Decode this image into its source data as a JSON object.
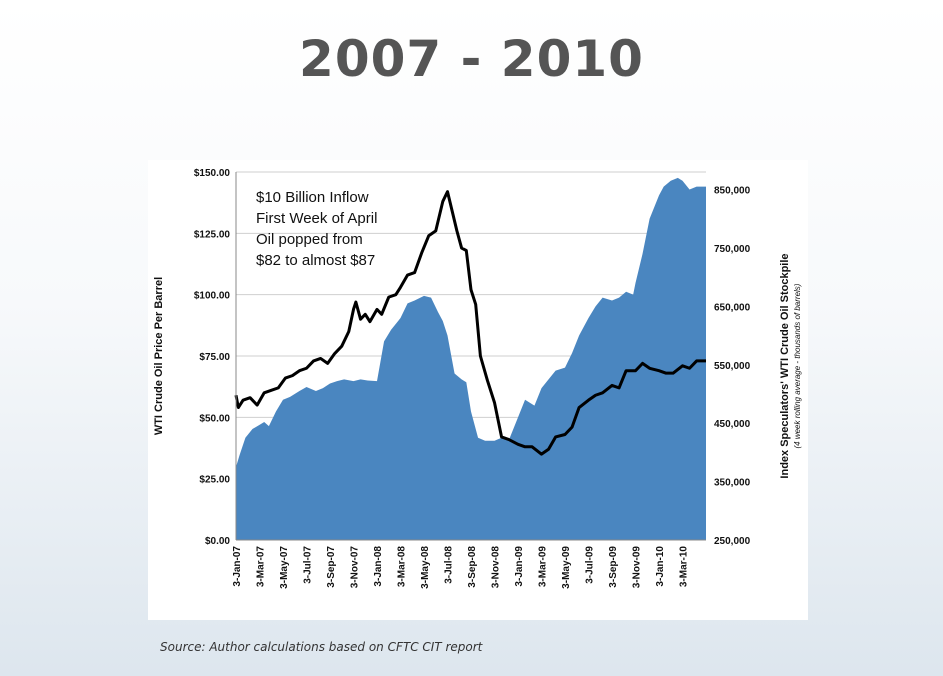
{
  "title": "2007 - 2010",
  "source": "Source: Author calculations based on CFTC CIT report",
  "colors": {
    "area": "#4a86c0",
    "line": "#000000",
    "grid": "#cfcfcf"
  },
  "chart_data": {
    "type": "area",
    "x_ticks": [
      "3-Jan-07",
      "3-Mar-07",
      "3-May-07",
      "3-Jul-07",
      "3-Sep-07",
      "3-Nov-07",
      "3-Jan-08",
      "3-Mar-08",
      "3-May-08",
      "3-Jul-08",
      "3-Sep-08",
      "3-Nov-08",
      "3-Jan-09",
      "3-Mar-09",
      "3-May-09",
      "3-Jul-09",
      "3-Sep-09",
      "3-Nov-09",
      "3-Jan-10",
      "3-Mar-10"
    ],
    "ylabel": "WTI Crude Oil Price Per Barrel",
    "y_ticks": [
      "$0.00",
      "$25.00",
      "$50.00",
      "$75.00",
      "$100.00",
      "$125.00",
      "$150.00"
    ],
    "ylim": [
      0,
      150
    ],
    "ylabel2": "Index Speculators' WTI Crude Oil Stockpile",
    "ylabel2_sub": "(4 week rolling average - thousands of barrels)",
    "y2_ticks": [
      "250,000",
      "350,000",
      "450,000",
      "550,000",
      "650,000",
      "750,000",
      "850,000"
    ],
    "y2lim": [
      250000,
      880000
    ],
    "annotation": [
      "$10 Billion Inflow",
      "First Week of April",
      "Oil popped from",
      "$82 to almost $87"
    ],
    "series": [
      {
        "kind": "area",
        "axis": "right",
        "x": [
          0,
          0.15,
          0.4,
          0.7,
          1.0,
          1.2,
          1.4,
          1.7,
          2.0,
          2.3,
          2.7,
          3.0,
          3.4,
          3.7,
          4.0,
          4.3,
          4.6,
          5.0,
          5.3,
          5.6,
          6.0,
          6.3,
          6.6,
          6.9,
          7.0,
          7.3,
          7.6,
          8.0,
          8.3,
          8.6,
          8.8,
          9.0,
          9.3,
          9.6,
          9.8,
          10.0,
          10.3,
          10.6,
          10.9,
          11.0,
          11.3,
          11.6,
          12.0,
          12.3,
          12.7,
          13.0,
          13.3,
          13.6,
          14.0,
          14.3,
          14.6,
          15.0,
          15.3,
          15.6,
          16.0,
          16.3,
          16.6,
          16.9,
          17.0,
          17.3,
          17.6,
          18.0,
          18.2,
          18.5,
          18.8,
          19.0,
          19.3,
          19.6,
          20.0
        ],
        "values": [
          375000,
          395000,
          425000,
          440000,
          447000,
          452000,
          445000,
          470000,
          490000,
          495000,
          505000,
          512000,
          505000,
          510000,
          518000,
          522000,
          525000,
          522000,
          525000,
          523000,
          522000,
          590000,
          610000,
          625000,
          630000,
          655000,
          660000,
          668000,
          665000,
          640000,
          625000,
          600000,
          535000,
          525000,
          520000,
          470000,
          425000,
          420000,
          420000,
          420000,
          425000,
          420000,
          460000,
          490000,
          480000,
          510000,
          525000,
          540000,
          545000,
          570000,
          600000,
          630000,
          650000,
          665000,
          660000,
          665000,
          675000,
          670000,
          690000,
          740000,
          800000,
          840000,
          855000,
          865000,
          870000,
          865000,
          850000,
          855000,
          855000
        ]
      },
      {
        "kind": "line",
        "axis": "left",
        "x": [
          0,
          0.1,
          0.3,
          0.6,
          0.9,
          1.2,
          1.5,
          1.8,
          2.1,
          2.4,
          2.7,
          3.0,
          3.3,
          3.6,
          3.9,
          4.2,
          4.5,
          4.8,
          5.0,
          5.1,
          5.3,
          5.5,
          5.7,
          6.0,
          6.2,
          6.5,
          6.8,
          7.0,
          7.3,
          7.6,
          7.9,
          8.2,
          8.5,
          8.8,
          9.0,
          9.2,
          9.4,
          9.6,
          9.8,
          10.0,
          10.2,
          10.4,
          10.7,
          11.0,
          11.3,
          11.6,
          12.0,
          12.3,
          12.6,
          13.0,
          13.3,
          13.6,
          14.0,
          14.3,
          14.6,
          15.0,
          15.3,
          15.6,
          16.0,
          16.3,
          16.6,
          17.0,
          17.3,
          17.6,
          18.0,
          18.3,
          18.6,
          19.0,
          19.3,
          19.6,
          20.0
        ],
        "values": [
          59,
          54,
          57,
          58,
          55,
          60,
          61,
          62,
          66,
          67,
          69,
          70,
          73,
          74,
          72,
          76,
          79,
          85,
          94,
          97,
          90,
          92,
          89,
          94,
          92,
          99,
          100,
          103,
          108,
          109,
          117,
          124,
          126,
          138,
          142,
          134,
          126,
          119,
          118,
          102,
          96,
          75,
          65,
          56,
          42,
          41,
          39,
          38,
          38,
          35,
          37,
          42,
          43,
          46,
          54,
          57,
          59,
          60,
          63,
          62,
          69,
          69,
          72,
          70,
          69,
          68,
          68,
          71,
          70,
          73,
          73
        ]
      }
    ]
  }
}
